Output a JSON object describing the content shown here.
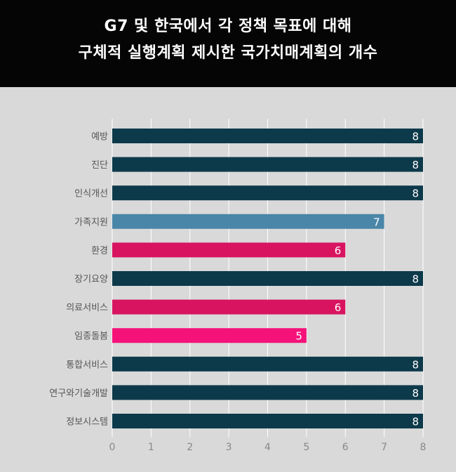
{
  "chart_data": {
    "type": "bar",
    "orientation": "horizontal",
    "title_lines": [
      "G7 및 한국에서 각 정책 목표에 대해",
      "구체적 실행계획 제시한 국가치매계획의 개수"
    ],
    "categories": [
      "예방",
      "진단",
      "인식개선",
      "가족지원",
      "환경",
      "장기요양",
      "의료서비스",
      "임종돌봄",
      "통합서비스",
      "연구와기술개발",
      "정보시스템"
    ],
    "values": [
      8,
      8,
      8,
      7,
      6,
      8,
      6,
      5,
      8,
      8,
      8
    ],
    "bar_colors": [
      "#0d3a4a",
      "#0d3a4a",
      "#0d3a4a",
      "#4a86a8",
      "#d81460",
      "#0d3a4a",
      "#d81460",
      "#f5137a",
      "#0d3a4a",
      "#0d3a4a",
      "#0d3a4a"
    ],
    "x_ticks": [
      "0",
      "1",
      "2",
      "3",
      "4",
      "5",
      "6",
      "7",
      "8"
    ],
    "xlim": [
      0,
      8
    ],
    "grid": true,
    "data_labels": true,
    "colors": {
      "background": "#d9d9d9",
      "header": "#050505",
      "gridline": "#ffffff",
      "label_text": "#555555"
    }
  }
}
